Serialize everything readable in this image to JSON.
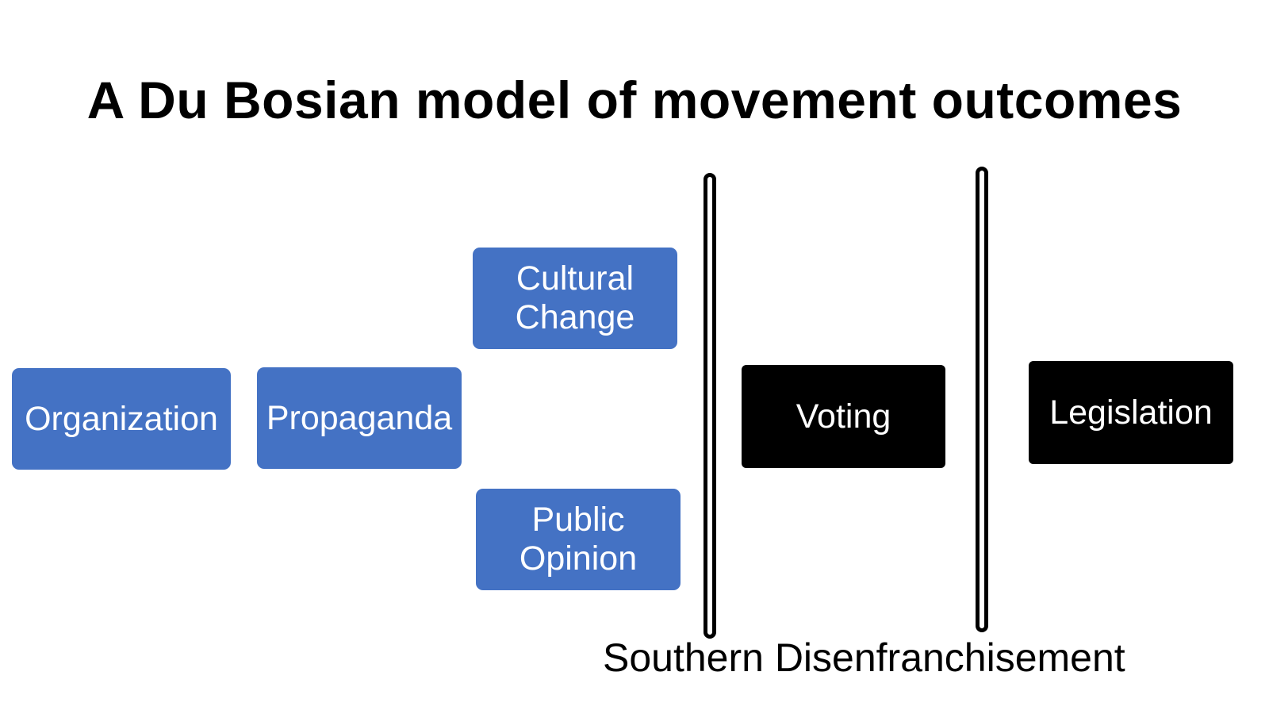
{
  "title": "A Du Bosian model of movement outcomes",
  "nodes": {
    "organization": "Organization",
    "propaganda": "Propaganda",
    "cultural_change": [
      "Cultural",
      "Change"
    ],
    "public_opinion": [
      "Public",
      "Opinion"
    ],
    "voting": "Voting",
    "legislation": "Legislation"
  },
  "barrier_label": "Southern Disenfranchisement",
  "colors": {
    "box_blue": "#4472c4",
    "box_black": "#000000",
    "text_light": "#ffffff",
    "text_dark": "#000000"
  }
}
